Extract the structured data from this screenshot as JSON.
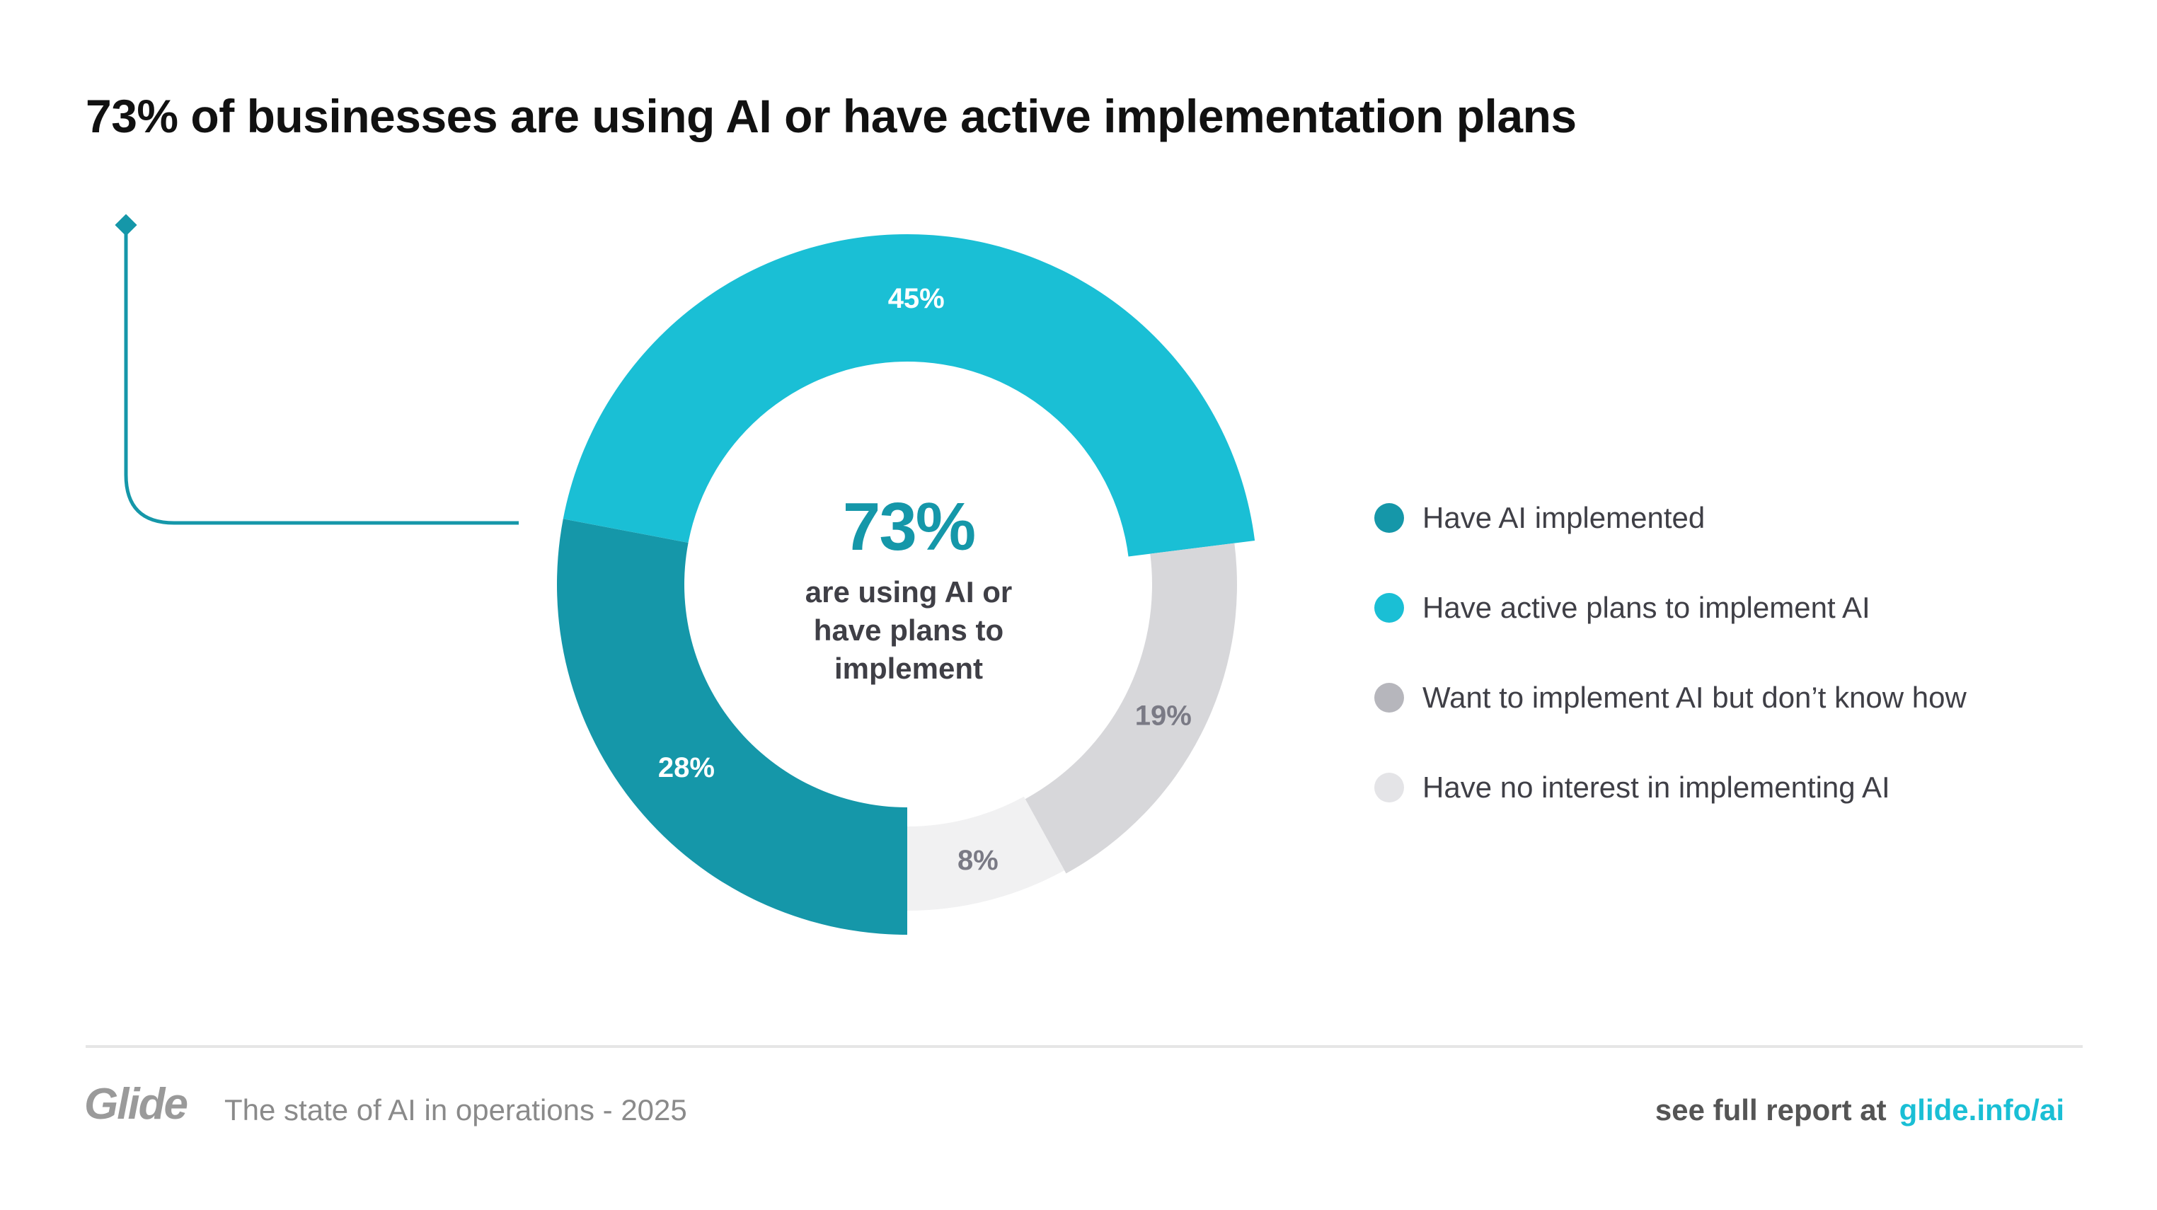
{
  "chart_data": {
    "type": "pie",
    "title": "73% of businesses are using AI or have active implementation plans",
    "center": {
      "value": "73%",
      "lines": [
        "are using AI or",
        "have plans to",
        "implement"
      ]
    },
    "slices": [
      {
        "label": "Have AI implemented",
        "value": 28,
        "display": "28%",
        "color": "#1597A9",
        "label_color": "#FFFFFF",
        "legend_color": "#1597A9"
      },
      {
        "label": "Have active plans to implement AI",
        "value": 45,
        "display": "45%",
        "color": "#1ABFD5",
        "label_color": "#FFFFFF",
        "legend_color": "#1ABFD5"
      },
      {
        "label": "Want to implement AI but don’t know how",
        "value": 19,
        "display": "19%",
        "color": "#D7D7DA",
        "label_color": "#7A7A85",
        "legend_color": "#B6B6BC"
      },
      {
        "label": "Have no interest in implementing AI",
        "value": 8,
        "display": "8%",
        "color": "#F1F1F2",
        "label_color": "#7A7A85",
        "legend_color": "#E4E4E7"
      }
    ],
    "legend_position": "right"
  },
  "footer": {
    "logo": "Glide",
    "subtitle": "The state of AI in operations - 2025",
    "cta": "see full report at",
    "link": "glide.info/ai"
  }
}
